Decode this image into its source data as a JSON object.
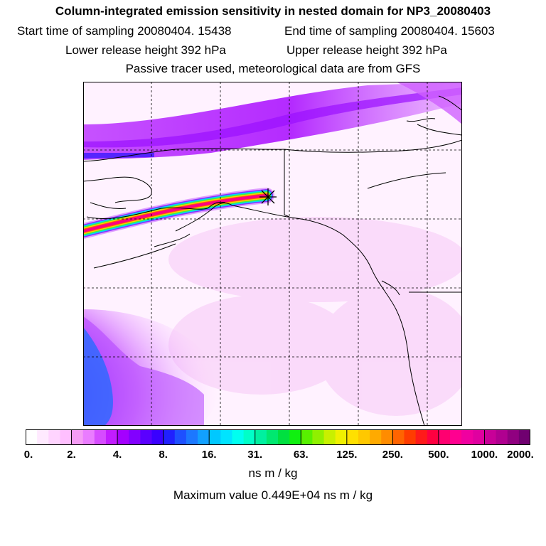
{
  "header": {
    "title": "Column-integrated emission sensitivity in nested domain for NP3_20080403",
    "start_time": "Start time of sampling 20080404. 15438",
    "end_time": "End time of sampling 20080404. 15603",
    "lower_release": "Lower release height  392 hPa",
    "upper_release": "Upper release height  392 hPa",
    "tracer_info": "Passive tracer used, meteorological data are from GFS"
  },
  "map": {
    "region": "Alaska / North-east Pacific / Western North America",
    "release_marker": "release-point-star",
    "grid": true
  },
  "colorbar": {
    "tick_labels": [
      "0.",
      "2.",
      "4.",
      "8.",
      "16.",
      "31.",
      "63.",
      "125.",
      "250.",
      "500.",
      "1000.",
      "2000."
    ],
    "colors": [
      "#ffffff",
      "#ffeaff",
      "#ffd4ff",
      "#ffbfff",
      "#f59cf5",
      "#ea7cff",
      "#d64cff",
      "#c21cff",
      "#a400ff",
      "#8200ff",
      "#5a00ff",
      "#3a00ff",
      "#2020ff",
      "#1e50ff",
      "#1c78ff",
      "#12a0ff",
      "#00c8ff",
      "#00e4ff",
      "#00fff0",
      "#00ffc8",
      "#00f0a0",
      "#00e870",
      "#00e040",
      "#10f010",
      "#58f000",
      "#90f000",
      "#c8f000",
      "#f0f000",
      "#ffe000",
      "#ffc800",
      "#ffaa00",
      "#ff8c00",
      "#ff6400",
      "#ff3c00",
      "#ff1a1a",
      "#ff0040",
      "#ff0070",
      "#ff0090",
      "#f000a0",
      "#e000a0",
      "#c80098",
      "#b00090",
      "#900080",
      "#700070"
    ],
    "units": "ns m / kg"
  },
  "max_value": "Maximum value  0.449E+04 ns m / kg"
}
